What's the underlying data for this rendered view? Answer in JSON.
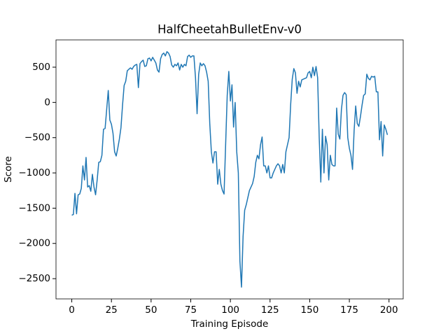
{
  "chart_data": {
    "type": "line",
    "title": "HalfCheetahBulletEnv-v0",
    "x_label": "Training Episode",
    "y_label": "Score",
    "series": [
      {
        "color": "#1f77b4",
        "values": [
          -1600,
          -1590,
          -1290,
          -1580,
          -1310,
          -1300,
          -1220,
          -900,
          -1100,
          -780,
          -1200,
          -1180,
          -1260,
          -1020,
          -1200,
          -1310,
          -1100,
          -850,
          -840,
          -750,
          -380,
          -370,
          -100,
          170,
          -250,
          -310,
          -440,
          -700,
          -760,
          -650,
          -520,
          -360,
          -40,
          240,
          300,
          450,
          470,
          490,
          470,
          510,
          530,
          540,
          210,
          550,
          580,
          600,
          510,
          520,
          620,
          630,
          590,
          640,
          600,
          560,
          460,
          430,
          620,
          680,
          700,
          660,
          720,
          700,
          650,
          530,
          500,
          540,
          520,
          560,
          460,
          540,
          500,
          540,
          520,
          650,
          670,
          640,
          660,
          660,
          350,
          -160,
          400,
          560,
          520,
          550,
          520,
          430,
          300,
          -300,
          -700,
          -860,
          -700,
          -700,
          -1160,
          -950,
          -1160,
          -1250,
          -1300,
          -600,
          100,
          440,
          20,
          250,
          -350,
          0,
          -700,
          -1000,
          -2250,
          -2620,
          -1900,
          -1530,
          -1450,
          -1350,
          -1250,
          -1200,
          -1150,
          -1050,
          -850,
          -750,
          -800,
          -600,
          -490,
          -900,
          -900,
          -1000,
          -900,
          -1070,
          -1070,
          -1000,
          -950,
          -900,
          -870,
          -900,
          -1000,
          -880,
          -1000,
          -700,
          -600,
          -500,
          -30,
          330,
          480,
          420,
          130,
          300,
          220,
          320,
          330,
          340,
          350,
          420,
          440,
          350,
          500,
          380,
          510,
          350,
          -500,
          -1130,
          -380,
          -1000,
          -480,
          -600,
          -1100,
          -750,
          -880,
          -900,
          -900,
          -80,
          -450,
          -520,
          -100,
          100,
          140,
          110,
          -500,
          -650,
          -750,
          -950,
          -400,
          -50,
          -300,
          -340,
          -200,
          -40,
          100,
          120,
          400,
          340,
          320,
          370,
          360,
          370,
          150,
          150,
          -530,
          -270,
          -760,
          -320,
          -380,
          -460
        ]
      }
    ],
    "xlim": [
      -9.95,
      208.95
    ],
    "xticks": [
      0,
      25,
      50,
      75,
      100,
      125,
      150,
      175,
      200
    ],
    "ylim": [
      -2787,
      887
    ],
    "yticks": [
      {
        "value": -2500,
        "label": "−2500"
      },
      {
        "value": -2000,
        "label": "−2000"
      },
      {
        "value": -1500,
        "label": "−1500"
      },
      {
        "value": -1000,
        "label": "−1000"
      },
      {
        "value": -500,
        "label": "−500"
      },
      0,
      500
    ],
    "grid": false
  }
}
